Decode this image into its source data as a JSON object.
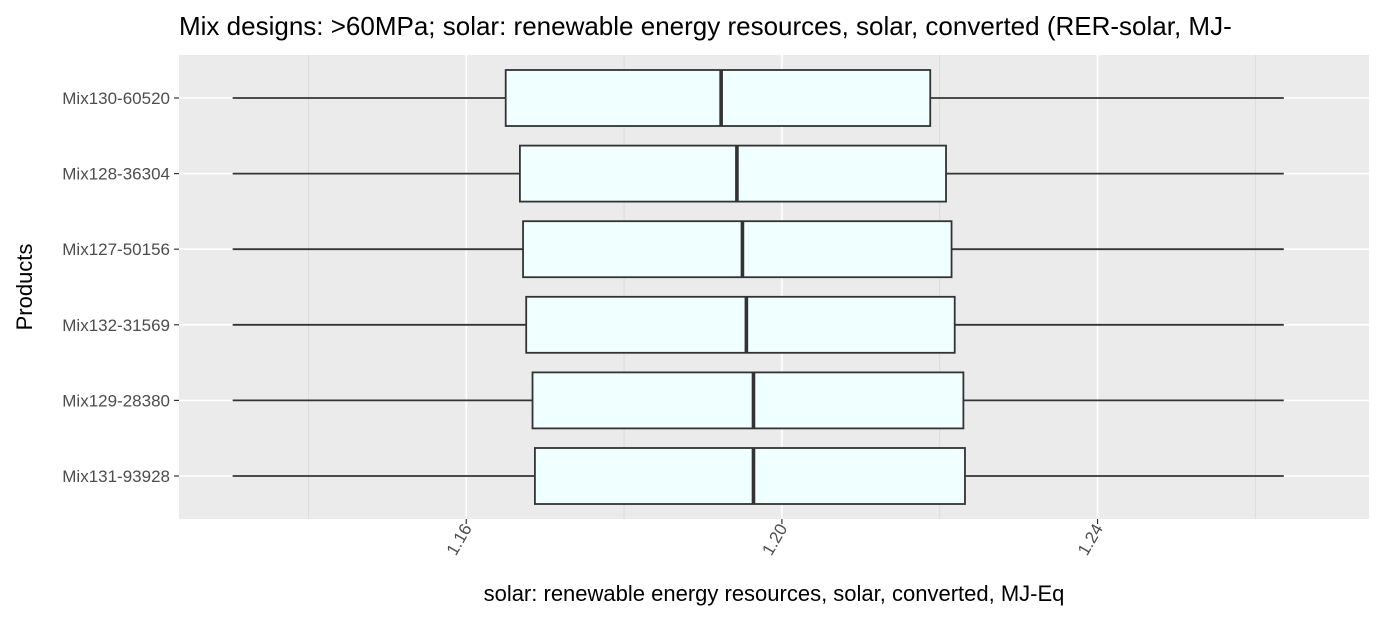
{
  "chart_data": {
    "type": "boxplot",
    "orientation": "horizontal",
    "title": "Mix designs: >60MPa; solar: renewable energy resources, solar, converted (RER-solar, MJ-",
    "xlabel": "solar: renewable energy resources, solar, converted, MJ-Eq",
    "ylabel": "Products",
    "xlim": [
      1.1236,
      1.2744
    ],
    "x_ticks": [
      1.16,
      1.2,
      1.24
    ],
    "x_tick_labels": [
      "1.16",
      "1.20",
      "1.24"
    ],
    "grid": true,
    "box_fill": "#f0ffff",
    "panel_background": "#ebebeb",
    "categories": [
      "Mix130-60520",
      "Mix128-36304",
      "Mix127-50156",
      "Mix132-31569",
      "Mix129-28380",
      "Mix131-93928"
    ],
    "boxes": [
      {
        "label": "Mix130-60520",
        "min": 1.1304,
        "q1": 1.165,
        "median": 1.1923,
        "q3": 1.2188,
        "max": 1.2636
      },
      {
        "label": "Mix128-36304",
        "min": 1.1304,
        "q1": 1.1668,
        "median": 1.1943,
        "q3": 1.2208,
        "max": 1.2636
      },
      {
        "label": "Mix127-50156",
        "min": 1.1304,
        "q1": 1.1672,
        "median": 1.195,
        "q3": 1.2215,
        "max": 1.2636
      },
      {
        "label": "Mix132-31569",
        "min": 1.1304,
        "q1": 1.1676,
        "median": 1.1955,
        "q3": 1.2219,
        "max": 1.2636
      },
      {
        "label": "Mix129-28380",
        "min": 1.1304,
        "q1": 1.1684,
        "median": 1.1964,
        "q3": 1.223,
        "max": 1.2636
      },
      {
        "label": "Mix131-93928",
        "min": 1.1304,
        "q1": 1.1687,
        "median": 1.1964,
        "q3": 1.2232,
        "max": 1.2636
      }
    ]
  }
}
